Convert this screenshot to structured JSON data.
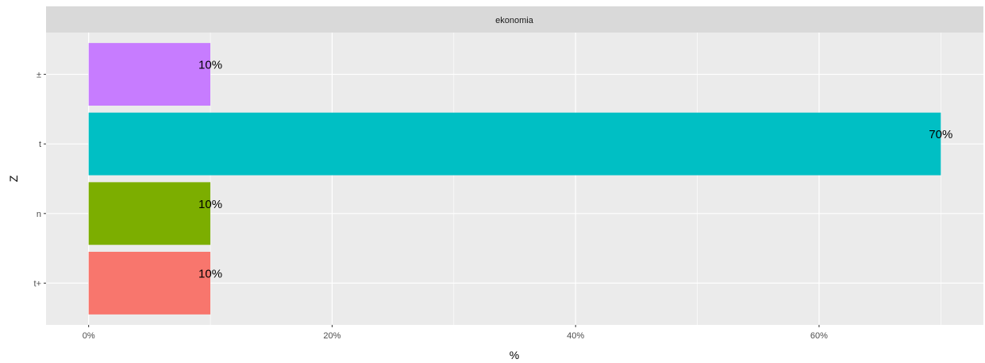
{
  "chart_data": {
    "type": "bar",
    "orientation": "horizontal",
    "facet": "ekonomia",
    "categories": [
      "t+",
      "n",
      "t",
      "±"
    ],
    "values": [
      10,
      10,
      70,
      10
    ],
    "data_labels": [
      "10%",
      "10%",
      "70%",
      "10%"
    ],
    "colors": [
      "#F8766D",
      "#7CAE00",
      "#00BFC4",
      "#C77CFF"
    ],
    "xlabel": "%",
    "ylabel": "Z",
    "xticks": [
      0,
      20,
      40,
      60
    ],
    "xtick_labels": [
      "0%",
      "20%",
      "40%",
      "60%"
    ],
    "xlim": [
      -3.5,
      73.5
    ],
    "grid": true,
    "legend": "none"
  },
  "theme": {
    "panel_background": "#EBEBEB",
    "strip_background": "#D9D9D9",
    "grid_color": "#FFFFFF"
  }
}
